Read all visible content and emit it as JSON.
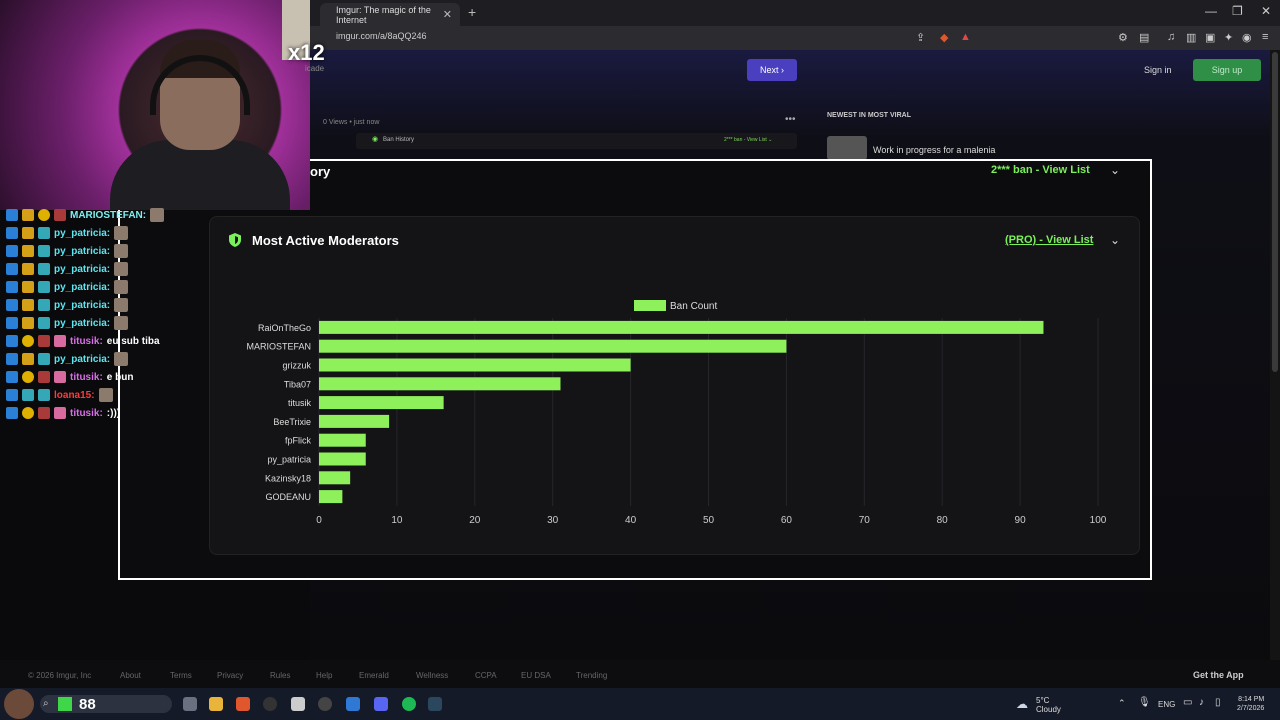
{
  "browser": {
    "tab_title": "Imgur: The magic of the Internet",
    "tab_close": "✕",
    "new_tab": "+",
    "url": "imgur.com/a/8aQQ246",
    "win_min": "—",
    "win_max": "❐",
    "win_close": "✕"
  },
  "header": {
    "next_label": "Next ›",
    "signin_label": "Sign in",
    "signup_label": "Sign up"
  },
  "post": {
    "views": "0 Views • just now",
    "more": "•••",
    "ban_history_small": "Ban History",
    "ban_history_small_right": "2*** ban - View List ⌄"
  },
  "sidebar": {
    "newest_title": "NEWEST IN MOST VIRAL",
    "viral_item": "Work in progress for a malenia"
  },
  "zoom": {
    "history_title": "ory",
    "history_right": "2*** ban - View List",
    "chevron": "⌄",
    "mods_title": "Most Active Moderators",
    "pro_link": "(PRO) - View List"
  },
  "chart_data": {
    "type": "bar",
    "orientation": "horizontal",
    "legend": "Ban Count",
    "legend_position": "top-center",
    "categories": [
      "RaiOnTheGo",
      "MARIOSTEFAN",
      "grizzuk",
      "Tiba07",
      "titusik",
      "BeeTrixie",
      "fpFlick",
      "py_patricia",
      "Kazinsky18",
      "GODEANU"
    ],
    "values": [
      93,
      60,
      40,
      31,
      16,
      9,
      6,
      6,
      4,
      3
    ],
    "xlim": [
      0,
      100
    ],
    "xticks": [
      0,
      10,
      20,
      30,
      40,
      50,
      60,
      70,
      80,
      90,
      100
    ],
    "bar_color": "#8ef05a",
    "grid": true
  },
  "stream": {
    "multiplier": "x12",
    "sub_tag": "icade"
  },
  "chat": [
    {
      "name": "MARIOSTEFAN:",
      "color": "#7ef0f0",
      "msg": "",
      "badges": [
        "blue",
        "gold",
        "round",
        "red"
      ]
    },
    {
      "name": "py_patricia:",
      "color": "#5ce6f0",
      "msg": "",
      "badges": [
        "blue",
        "gold",
        "teal"
      ]
    },
    {
      "name": "py_patricia:",
      "color": "#5ce6f0",
      "msg": "",
      "badges": [
        "blue",
        "gold",
        "teal"
      ]
    },
    {
      "name": "py_patricia:",
      "color": "#5ce6f0",
      "msg": "",
      "badges": [
        "blue",
        "gold",
        "teal"
      ]
    },
    {
      "name": "py_patricia:",
      "color": "#5ce6f0",
      "msg": "",
      "badges": [
        "blue",
        "gold",
        "teal"
      ]
    },
    {
      "name": "py_patricia:",
      "color": "#5ce6f0",
      "msg": "",
      "badges": [
        "blue",
        "gold",
        "teal"
      ]
    },
    {
      "name": "py_patricia:",
      "color": "#5ce6f0",
      "msg": "",
      "badges": [
        "blue",
        "gold",
        "teal"
      ]
    },
    {
      "name": "titusik:",
      "color": "#d86fe8",
      "msg": "eu sub tiba",
      "badges": [
        "blue",
        "round",
        "red",
        "pink"
      ]
    },
    {
      "name": "py_patricia:",
      "color": "#5ce6f0",
      "msg": "",
      "badges": [
        "blue",
        "gold",
        "teal"
      ]
    },
    {
      "name": "titusik:",
      "color": "#d86fe8",
      "msg": "e bun",
      "badges": [
        "blue",
        "round",
        "red",
        "pink"
      ]
    },
    {
      "name": "loana15:",
      "color": "#ff3b3b",
      "msg": "",
      "badges": [
        "blue",
        "teal",
        "teal"
      ]
    },
    {
      "name": "titusik:",
      "color": "#d86fe8",
      "msg": ":)))",
      "badges": [
        "blue",
        "round",
        "red",
        "pink"
      ]
    }
  ],
  "footer": {
    "copyright": "© 2026 Imgur, Inc",
    "links": [
      "About",
      "Terms",
      "Privacy",
      "Rules",
      "Help",
      "Emerald",
      "Wellness",
      "CCPA",
      "EU DSA",
      "Trending"
    ],
    "get_app": "Get the App"
  },
  "taskbar": {
    "viewer_count": "88",
    "temperature": "5°C",
    "condition": "Cloudy",
    "language": "ENG",
    "time": "8:14 PM",
    "date": "2/7/2026"
  }
}
